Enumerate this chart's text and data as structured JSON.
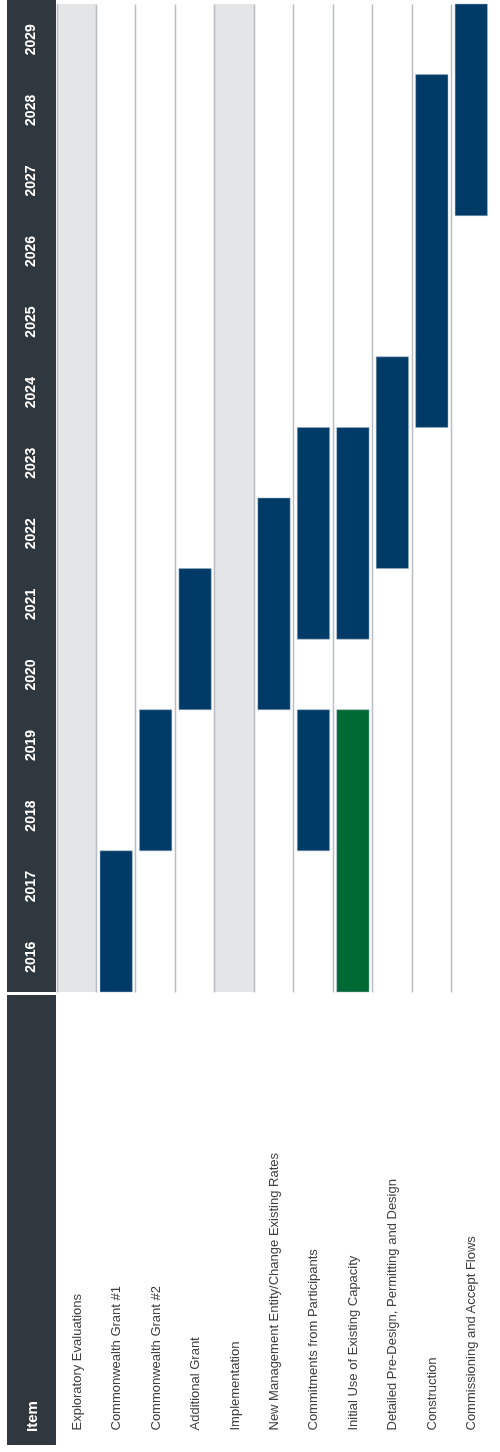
{
  "chart_data": {
    "type": "bar",
    "annotations": [
      "Item"
    ],
    "categories": [
      "Exploratory Evaluations",
      "Commonwealth Grant #1",
      "Commonwealth Grant #2",
      "Additional Grant",
      "Implementation",
      "New Management Entity/Change Existing Rates",
      "Commitments from Participants",
      "Initial Use of Existing Capacity",
      "Detailed Pre-Design, Permitting and Design",
      "Construction",
      "Commissioning and Accept Flows"
    ],
    "series": [
      {
        "color": "#003a66",
        "base": [
          null,
          2016,
          2018,
          2020,
          null,
          2020,
          2018,
          null,
          2022,
          2024,
          2027
        ],
        "values": [
          null,
          2,
          2,
          2,
          null,
          3,
          2,
          null,
          3,
          5,
          3
        ]
      },
      {
        "color": "#003a66",
        "base": [
          null,
          null,
          null,
          null,
          null,
          null,
          2021,
          2021,
          null,
          null,
          null
        ],
        "values": [
          null,
          null,
          null,
          null,
          null,
          null,
          3,
          3,
          null,
          null,
          null
        ]
      },
      {
        "color": "#006a35",
        "base": [
          null,
          null,
          null,
          null,
          null,
          null,
          null,
          2016,
          null,
          null,
          null
        ],
        "values": [
          null,
          null,
          null,
          null,
          null,
          null,
          null,
          4,
          null,
          null,
          null
        ]
      }
    ],
    "ylim": [
      2016,
      2030
    ],
    "yticks": [
      {
        "value": 2016.5,
        "label": "2016"
      },
      {
        "value": 2017.5,
        "label": "2017"
      },
      {
        "value": 2018.5,
        "label": "2018"
      },
      {
        "value": 2019.5,
        "label": "2019"
      },
      {
        "value": 2020.5,
        "label": "2020"
      },
      {
        "value": 2021.5,
        "label": "2021"
      },
      {
        "value": 2022.5,
        "label": "2022"
      },
      {
        "value": 2023.5,
        "label": "2023"
      },
      {
        "value": 2024.5,
        "label": "2024"
      },
      {
        "value": 2025.5,
        "label": "2025"
      },
      {
        "value": 2026.5,
        "label": "2026"
      },
      {
        "value": 2027.5,
        "label": "2027"
      },
      {
        "value": 2028.5,
        "label": "2028"
      },
      {
        "value": 2029.5,
        "label": "2029"
      }
    ],
    "bands": [
      {
        "axis": "x",
        "from": "Exploratory Evaluations",
        "to": "Exploratory Evaluations",
        "color": "#e4e5e7"
      },
      {
        "axis": "x",
        "from": "Implementation",
        "to": "Implementation",
        "color": "#e4e5e7"
      }
    ],
    "grid": "x"
  }
}
